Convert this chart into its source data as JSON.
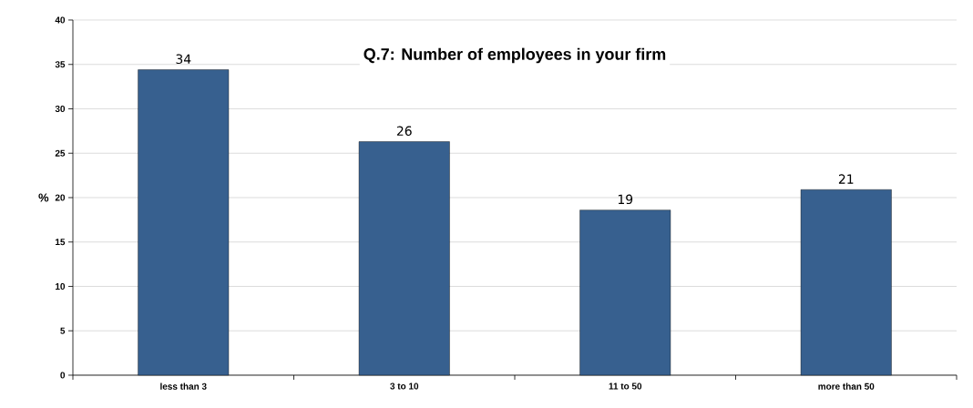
{
  "chart_data": {
    "type": "bar",
    "title": "Q.7: Number of employees in your firm",
    "ylabel": "%",
    "categories": [
      "less than 3",
      "3 to 10",
      "11 to 50",
      "more than 50"
    ],
    "values": [
      34.4,
      26.3,
      18.6,
      20.9
    ],
    "value_labels": [
      "34",
      "26",
      "19",
      "21"
    ],
    "color": "#37608f",
    "ylim": [
      0,
      40
    ],
    "yticks": [
      0,
      5,
      10,
      15,
      20,
      25,
      30,
      35,
      40
    ],
    "grid": "y"
  }
}
